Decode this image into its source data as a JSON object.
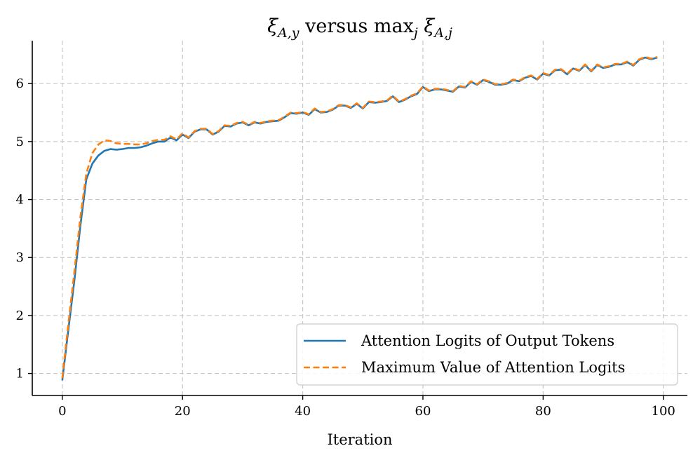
{
  "chart_data": {
    "type": "line",
    "title": {
      "parts": [
        {
          "text": "ξ",
          "style": "italic"
        },
        {
          "text": "A,y",
          "style": "italic",
          "sub": true
        },
        {
          "text": " versus max",
          "style": "normal"
        },
        {
          "text": "j",
          "style": "italic",
          "sub": true
        },
        {
          "text": " ξ",
          "style": "italic"
        },
        {
          "text": "A,j",
          "style": "italic",
          "sub": true
        }
      ]
    },
    "xlabel": "Iteration",
    "ylabel": "",
    "xlim": [
      -5,
      104
    ],
    "ylim": [
      0.62,
      6.74
    ],
    "xticks": [
      0,
      20,
      40,
      60,
      80,
      100
    ],
    "yticks": [
      1,
      2,
      3,
      4,
      5,
      6
    ],
    "grid": true,
    "legend_position": "bottom-right",
    "series": [
      {
        "name": "Attention Logits of Output Tokens",
        "color": "#1f77b4",
        "linestyle": "solid",
        "x": [
          0,
          1,
          2,
          3,
          4,
          5,
          6,
          7,
          8,
          9,
          10,
          11,
          12,
          13,
          14,
          15,
          16,
          17,
          18,
          19,
          20,
          21,
          22,
          23,
          24,
          25,
          26,
          27,
          28,
          29,
          30,
          31,
          32,
          33,
          34,
          35,
          36,
          37,
          38,
          39,
          40,
          41,
          42,
          43,
          44,
          45,
          46,
          47,
          48,
          49,
          50,
          51,
          52,
          53,
          54,
          55,
          56,
          57,
          58,
          59,
          60,
          61,
          62,
          63,
          64,
          65,
          66,
          67,
          68,
          69,
          70,
          71,
          72,
          73,
          74,
          75,
          76,
          77,
          78,
          79,
          80,
          81,
          82,
          83,
          84,
          85,
          86,
          87,
          88,
          89,
          90,
          91,
          92,
          93,
          94,
          95,
          96,
          97,
          98,
          99
        ],
        "y": [
          0.88,
          1.75,
          2.6,
          3.55,
          4.35,
          4.62,
          4.76,
          4.84,
          4.87,
          4.86,
          4.87,
          4.89,
          4.89,
          4.9,
          4.93,
          4.97,
          5.0,
          5.0,
          5.07,
          5.02,
          5.12,
          5.06,
          5.17,
          5.21,
          5.21,
          5.12,
          5.17,
          5.27,
          5.26,
          5.31,
          5.33,
          5.28,
          5.33,
          5.31,
          5.34,
          5.35,
          5.36,
          5.42,
          5.49,
          5.48,
          5.5,
          5.46,
          5.56,
          5.5,
          5.51,
          5.55,
          5.62,
          5.62,
          5.58,
          5.65,
          5.57,
          5.68,
          5.67,
          5.68,
          5.7,
          5.78,
          5.68,
          5.72,
          5.78,
          5.82,
          5.94,
          5.87,
          5.9,
          5.9,
          5.88,
          5.86,
          5.95,
          5.93,
          6.03,
          5.98,
          6.06,
          6.03,
          5.98,
          5.98,
          6.0,
          6.06,
          6.04,
          6.1,
          6.13,
          6.07,
          6.17,
          6.14,
          6.23,
          6.24,
          6.16,
          6.26,
          6.22,
          6.32,
          6.21,
          6.32,
          6.27,
          6.29,
          6.33,
          6.33,
          6.37,
          6.31,
          6.41,
          6.45,
          6.42,
          6.45
        ]
      },
      {
        "name": "Maximum Value of Attention Logits",
        "color": "#ff7f0e",
        "linestyle": "dashed",
        "x": [
          0,
          1,
          2,
          3,
          4,
          5,
          6,
          7,
          8,
          9,
          10,
          11,
          12,
          13,
          14,
          15,
          16,
          17,
          18,
          19,
          20,
          21,
          22,
          23,
          24,
          25,
          26,
          27,
          28,
          29,
          30,
          31,
          32,
          33,
          34,
          35,
          36,
          37,
          38,
          39,
          40,
          41,
          42,
          43,
          44,
          45,
          46,
          47,
          48,
          49,
          50,
          51,
          52,
          53,
          54,
          55,
          56,
          57,
          58,
          59,
          60,
          61,
          62,
          63,
          64,
          65,
          66,
          67,
          68,
          69,
          70,
          71,
          72,
          73,
          74,
          75,
          76,
          77,
          78,
          79,
          80,
          81,
          82,
          83,
          84,
          85,
          86,
          87,
          88,
          89,
          90,
          91,
          92,
          93,
          94,
          95,
          96,
          97,
          98,
          99
        ],
        "y": [
          0.92,
          1.85,
          2.75,
          3.7,
          4.45,
          4.8,
          4.95,
          5.02,
          5.01,
          4.97,
          4.96,
          4.96,
          4.95,
          4.95,
          4.97,
          5.01,
          5.03,
          5.03,
          5.09,
          5.04,
          5.14,
          5.07,
          5.18,
          5.22,
          5.22,
          5.13,
          5.18,
          5.28,
          5.27,
          5.32,
          5.34,
          5.29,
          5.34,
          5.32,
          5.35,
          5.36,
          5.37,
          5.43,
          5.5,
          5.49,
          5.51,
          5.47,
          5.57,
          5.51,
          5.52,
          5.56,
          5.63,
          5.63,
          5.59,
          5.66,
          5.58,
          5.69,
          5.68,
          5.69,
          5.71,
          5.79,
          5.69,
          5.73,
          5.79,
          5.83,
          5.95,
          5.88,
          5.91,
          5.91,
          5.89,
          5.87,
          5.96,
          5.94,
          6.04,
          5.99,
          6.07,
          6.04,
          5.99,
          5.99,
          6.01,
          6.07,
          6.05,
          6.11,
          6.14,
          6.08,
          6.18,
          6.15,
          6.24,
          6.25,
          6.17,
          6.27,
          6.23,
          6.33,
          6.22,
          6.33,
          6.28,
          6.3,
          6.34,
          6.34,
          6.38,
          6.32,
          6.42,
          6.46,
          6.43,
          6.46
        ]
      }
    ]
  }
}
